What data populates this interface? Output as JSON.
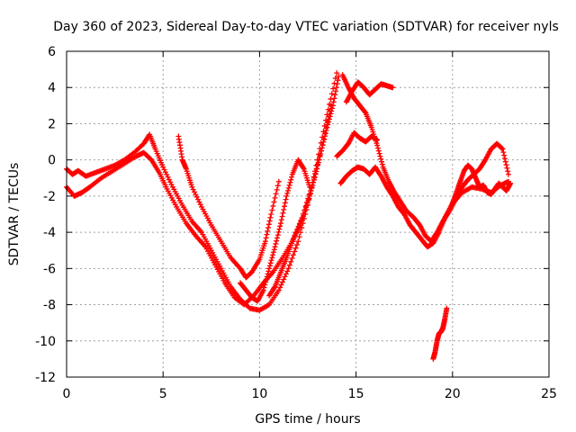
{
  "chart_data": {
    "type": "scatter",
    "title": "Day 360 of 2023, Sidereal Day-to-day VTEC variation (SDTVAR) for receiver nyls",
    "xlabel": "GPS time / hours",
    "ylabel": "SDTVAR / TECUs",
    "xlim": [
      0,
      25
    ],
    "ylim": [
      -12,
      6
    ],
    "xticks": [
      "0",
      "5",
      "10",
      "15",
      "20",
      "25"
    ],
    "yticks": [
      "-12",
      "-10",
      "-8",
      "-6",
      "-4",
      "-2",
      "0",
      "2",
      "4",
      "6"
    ],
    "grid": true,
    "marker": "+",
    "color": "#ff0000",
    "series": [
      {
        "x": [
          0.0,
          0.3,
          0.6,
          1.0,
          1.5,
          2.0,
          2.5,
          3.0,
          3.5,
          4.0,
          4.3,
          4.6,
          5.0,
          5.5,
          6.0,
          6.5,
          7.0,
          7.5,
          8.0,
          8.5,
          9.0,
          9.5,
          10.0,
          10.5,
          11.0,
          11.5,
          12.0,
          12.5,
          13.0,
          13.5,
          14.0
        ],
        "y": [
          -0.5,
          -0.8,
          -0.6,
          -0.9,
          -0.7,
          -0.5,
          -0.3,
          0.0,
          0.4,
          0.9,
          1.4,
          0.6,
          -0.4,
          -1.5,
          -2.5,
          -3.4,
          -4.0,
          -5.0,
          -6.0,
          -7.0,
          -7.7,
          -8.2,
          -8.3,
          -8.0,
          -7.2,
          -6.0,
          -4.5,
          -2.5,
          0.0,
          2.5,
          4.8
        ]
      },
      {
        "x": [
          0.0,
          0.4,
          0.8,
          1.2,
          1.8,
          2.4,
          3.0,
          3.6,
          4.0,
          4.4,
          4.8,
          5.2,
          5.7,
          6.2,
          6.7,
          7.2,
          7.7,
          8.2,
          8.7,
          9.2,
          9.7,
          10.2,
          10.7,
          11.2,
          11.7,
          12.2,
          12.7,
          13.2,
          13.7
        ],
        "y": [
          -1.5,
          -2.0,
          -1.8,
          -1.5,
          -1.0,
          -0.6,
          -0.2,
          0.2,
          0.4,
          0.0,
          -0.7,
          -1.6,
          -2.6,
          -3.5,
          -4.2,
          -4.8,
          -5.8,
          -6.8,
          -7.6,
          -8.0,
          -7.5,
          -6.8,
          -6.2,
          -5.4,
          -4.5,
          -3.2,
          -1.5,
          0.5,
          3.0
        ]
      },
      {
        "x": [
          5.8,
          6.0,
          6.2,
          6.5,
          7.0,
          7.5,
          8.0,
          8.5,
          9.0,
          9.3,
          9.6,
          10.0,
          10.3,
          10.6,
          11.0
        ],
        "y": [
          1.3,
          0.0,
          -0.5,
          -1.5,
          -2.6,
          -3.6,
          -4.5,
          -5.4,
          -6.0,
          -6.5,
          -6.2,
          -5.5,
          -4.5,
          -3.0,
          -1.2
        ]
      },
      {
        "x": [
          9.0,
          9.3,
          9.6,
          9.9,
          10.2,
          10.5,
          10.8,
          11.1,
          11.4,
          11.7,
          12.0,
          12.3,
          12.6
        ],
        "y": [
          -6.8,
          -7.2,
          -7.6,
          -7.8,
          -7.2,
          -6.0,
          -4.8,
          -3.5,
          -2.0,
          -0.8,
          0.0,
          -0.5,
          -1.5
        ]
      },
      {
        "x": [
          10.5,
          10.8,
          11.1,
          11.4,
          11.7,
          12.0,
          12.3,
          12.6,
          12.9,
          13.2,
          13.5,
          13.8,
          14.1
        ],
        "y": [
          -7.5,
          -7.0,
          -6.2,
          -5.4,
          -4.5,
          -3.8,
          -3.0,
          -2.0,
          -0.8,
          0.5,
          1.8,
          3.0,
          4.6
        ]
      },
      {
        "x": [
          14.3,
          14.6,
          14.9,
          15.2,
          15.5,
          15.8,
          16.1,
          16.4,
          16.7,
          17.0,
          17.3,
          17.6,
          18.0,
          18.3,
          18.6,
          18.9,
          19.2,
          19.5,
          19.8,
          20.1,
          20.5,
          21.0,
          21.5,
          22.0,
          22.5,
          22.9
        ],
        "y": [
          4.7,
          4.0,
          3.4,
          3.0,
          2.6,
          1.8,
          0.8,
          -0.4,
          -1.2,
          -1.8,
          -2.3,
          -2.8,
          -3.2,
          -3.6,
          -4.2,
          -4.5,
          -4.0,
          -3.4,
          -2.9,
          -2.3,
          -1.8,
          -1.5,
          -1.6,
          -1.8,
          -1.4,
          -1.2
        ]
      },
      {
        "x": [
          14.5,
          14.8,
          15.1,
          15.4,
          15.7,
          16.0,
          16.3,
          16.6,
          16.9
        ],
        "y": [
          3.2,
          3.8,
          4.3,
          4.0,
          3.6,
          3.9,
          4.2,
          4.1,
          4.0
        ]
      },
      {
        "x": [
          14.2,
          14.5,
          14.8,
          15.1,
          15.4,
          15.7,
          16.0,
          16.3,
          16.6,
          16.9,
          17.2,
          17.5,
          17.8,
          18.1,
          18.4,
          18.7,
          19.0,
          19.3,
          19.6,
          19.9,
          20.2,
          20.5,
          20.8,
          21.1,
          21.4,
          21.7,
          22.0,
          22.3,
          22.6,
          22.9
        ],
        "y": [
          -1.3,
          -0.9,
          -0.6,
          -0.4,
          -0.5,
          -0.8,
          -0.4,
          -0.9,
          -1.5,
          -2.0,
          -2.6,
          -3.0,
          -3.6,
          -4.0,
          -4.4,
          -4.8,
          -4.6,
          -4.0,
          -3.2,
          -2.6,
          -2.0,
          -1.5,
          -1.1,
          -0.8,
          -0.5,
          0.0,
          0.6,
          0.9,
          0.6,
          -0.8
        ]
      },
      {
        "x": [
          14.0,
          14.3,
          14.6,
          14.9,
          15.2,
          15.5,
          15.8,
          16.1
        ],
        "y": [
          0.2,
          0.5,
          0.9,
          1.5,
          1.2,
          1.0,
          1.3,
          1.1
        ]
      },
      {
        "x": [
          19.0,
          19.1,
          19.2,
          19.3,
          19.4,
          19.5,
          19.6,
          19.7
        ],
        "y": [
          -11.0,
          -10.6,
          -10.0,
          -9.6,
          -9.5,
          -9.3,
          -8.8,
          -8.2
        ]
      },
      {
        "x": [
          20.0,
          20.2,
          20.4,
          20.6,
          20.8,
          21.0,
          21.2,
          21.4,
          21.6,
          21.8,
          22.0,
          22.2,
          22.4,
          22.6,
          22.8,
          23.0
        ],
        "y": [
          -2.4,
          -1.8,
          -1.2,
          -0.6,
          -0.3,
          -0.5,
          -1.0,
          -1.5,
          -1.4,
          -1.8,
          -1.9,
          -1.6,
          -1.3,
          -1.5,
          -1.7,
          -1.3
        ]
      }
    ]
  }
}
